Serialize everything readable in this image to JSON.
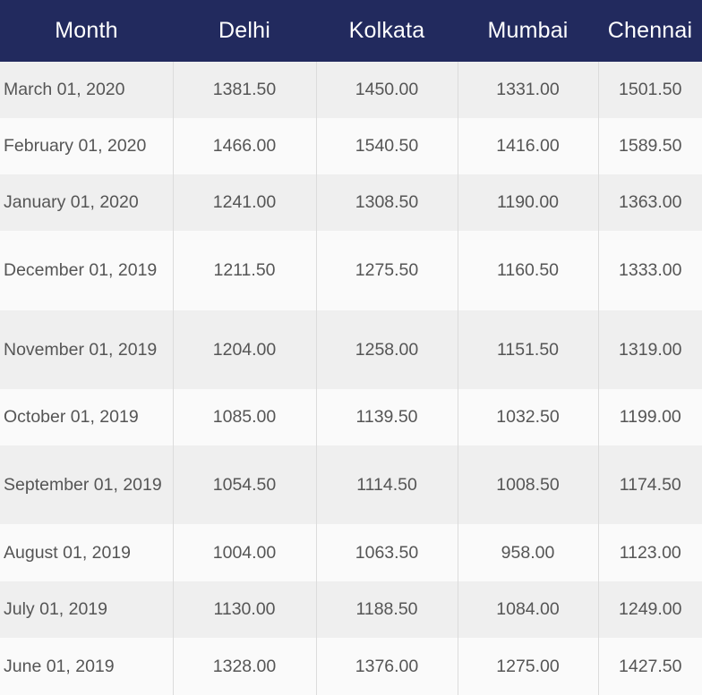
{
  "chart_data": {
    "type": "table",
    "columns": [
      "Month",
      "Delhi",
      "Kolkata",
      "Mumbai",
      "Chennai"
    ],
    "rows": [
      [
        "March 01, 2020",
        "1381.50",
        "1450.00",
        "1331.00",
        "1501.50"
      ],
      [
        "February 01, 2020",
        "1466.00",
        "1540.50",
        "1416.00",
        "1589.50"
      ],
      [
        "January 01, 2020",
        "1241.00",
        "1308.50",
        "1190.00",
        "1363.00"
      ],
      [
        "December 01, 2019",
        "1211.50",
        "1275.50",
        "1160.50",
        "1333.00"
      ],
      [
        "November 01, 2019",
        "1204.00",
        "1258.00",
        "1151.50",
        "1319.00"
      ],
      [
        "October 01, 2019",
        "1085.00",
        "1139.50",
        "1032.50",
        "1199.00"
      ],
      [
        "September 01, 2019",
        "1054.50",
        "1114.50",
        "1008.50",
        "1174.50"
      ],
      [
        "August 01, 2019",
        "1004.00",
        "1063.50",
        "958.00",
        "1123.00"
      ],
      [
        "July 01, 2019",
        "1130.00",
        "1188.50",
        "1084.00",
        "1249.00"
      ],
      [
        "June 01, 2019",
        "1328.00",
        "1376.00",
        "1275.00",
        "1427.50"
      ]
    ]
  },
  "colors": {
    "header_background": "#222a5e",
    "header_text": "#ffffff",
    "row_odd": "#efefef",
    "row_even": "#fafafa",
    "cell_text": "#555555",
    "divider": "#dcdcdc"
  }
}
